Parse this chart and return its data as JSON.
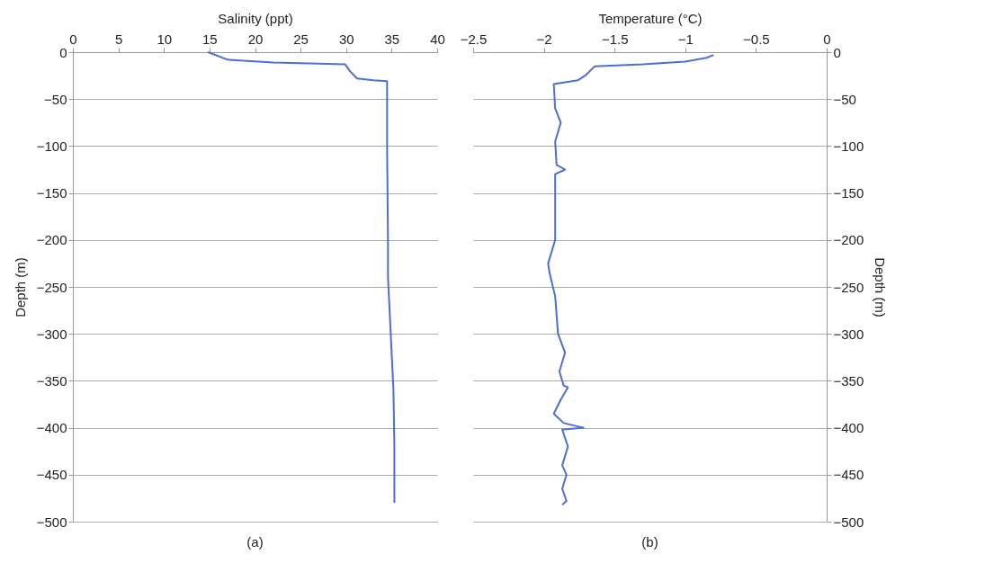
{
  "chart_data": [
    {
      "type": "line",
      "xlabel": "Salinity (ppt)",
      "ylabel": "Depth (m)",
      "xlim": [
        0,
        40
      ],
      "xticks": [
        0,
        5,
        10,
        15,
        20,
        25,
        30,
        35,
        40
      ],
      "ylim": [
        -500,
        0
      ],
      "yticks": [
        0,
        -50,
        -100,
        -150,
        -200,
        -250,
        -300,
        -350,
        -400,
        -450,
        -500
      ],
      "grid": "y",
      "annotations": [
        "(a)"
      ],
      "series": [
        {
          "color": "#4f6fcf",
          "x": [
            14.8,
            15.1,
            17,
            22,
            26,
            29.9,
            30.4,
            31.2,
            33,
            34.5,
            34.5,
            34.6,
            34.6,
            35.2,
            35.3,
            35.3
          ],
          "values": [
            0,
            -1,
            -8,
            -11,
            -12,
            -13,
            -20,
            -28,
            -30,
            -31,
            -100,
            -200,
            -240,
            -360,
            -420,
            -480
          ]
        }
      ]
    },
    {
      "type": "line",
      "xlabel": "Temperature (°C)",
      "y2label": "Depth (m)",
      "xlim": [
        -2.5,
        0
      ],
      "xticks": [
        -2.5,
        -2,
        -1.5,
        -1,
        -0.5,
        0
      ],
      "y2lim": [
        -500,
        0
      ],
      "y2ticks": [
        0,
        -50,
        -100,
        -150,
        -200,
        -250,
        -300,
        -350,
        -400,
        -450,
        -500
      ],
      "grid": "y",
      "annotations": [
        "(b)"
      ],
      "series": [
        {
          "color": "#4f6fcf",
          "axis": "y2",
          "x": [
            -0.8,
            -0.85,
            -1.0,
            -1.3,
            -1.64,
            -1.7,
            -1.76,
            -1.93,
            -1.92,
            -1.88,
            -1.92,
            -1.91,
            -1.85,
            -1.92,
            -1.92,
            -1.97,
            -1.96,
            -1.92,
            -1.9,
            -1.85,
            -1.89,
            -1.86,
            -1.83,
            -1.88,
            -1.93,
            -1.86,
            -1.72,
            -1.87,
            -1.83,
            -1.87,
            -1.84,
            -1.87,
            -1.84,
            -1.87
          ],
          "values": [
            -3,
            -6,
            -10,
            -13,
            -15,
            -24,
            -30,
            -34,
            -60,
            -75,
            -95,
            -120,
            -125,
            -130,
            -200,
            -225,
            -235,
            -260,
            -300,
            -320,
            -340,
            -355,
            -357,
            -370,
            -385,
            -395,
            -400,
            -402,
            -420,
            -440,
            -450,
            -465,
            -478,
            -482
          ]
        }
      ]
    }
  ]
}
